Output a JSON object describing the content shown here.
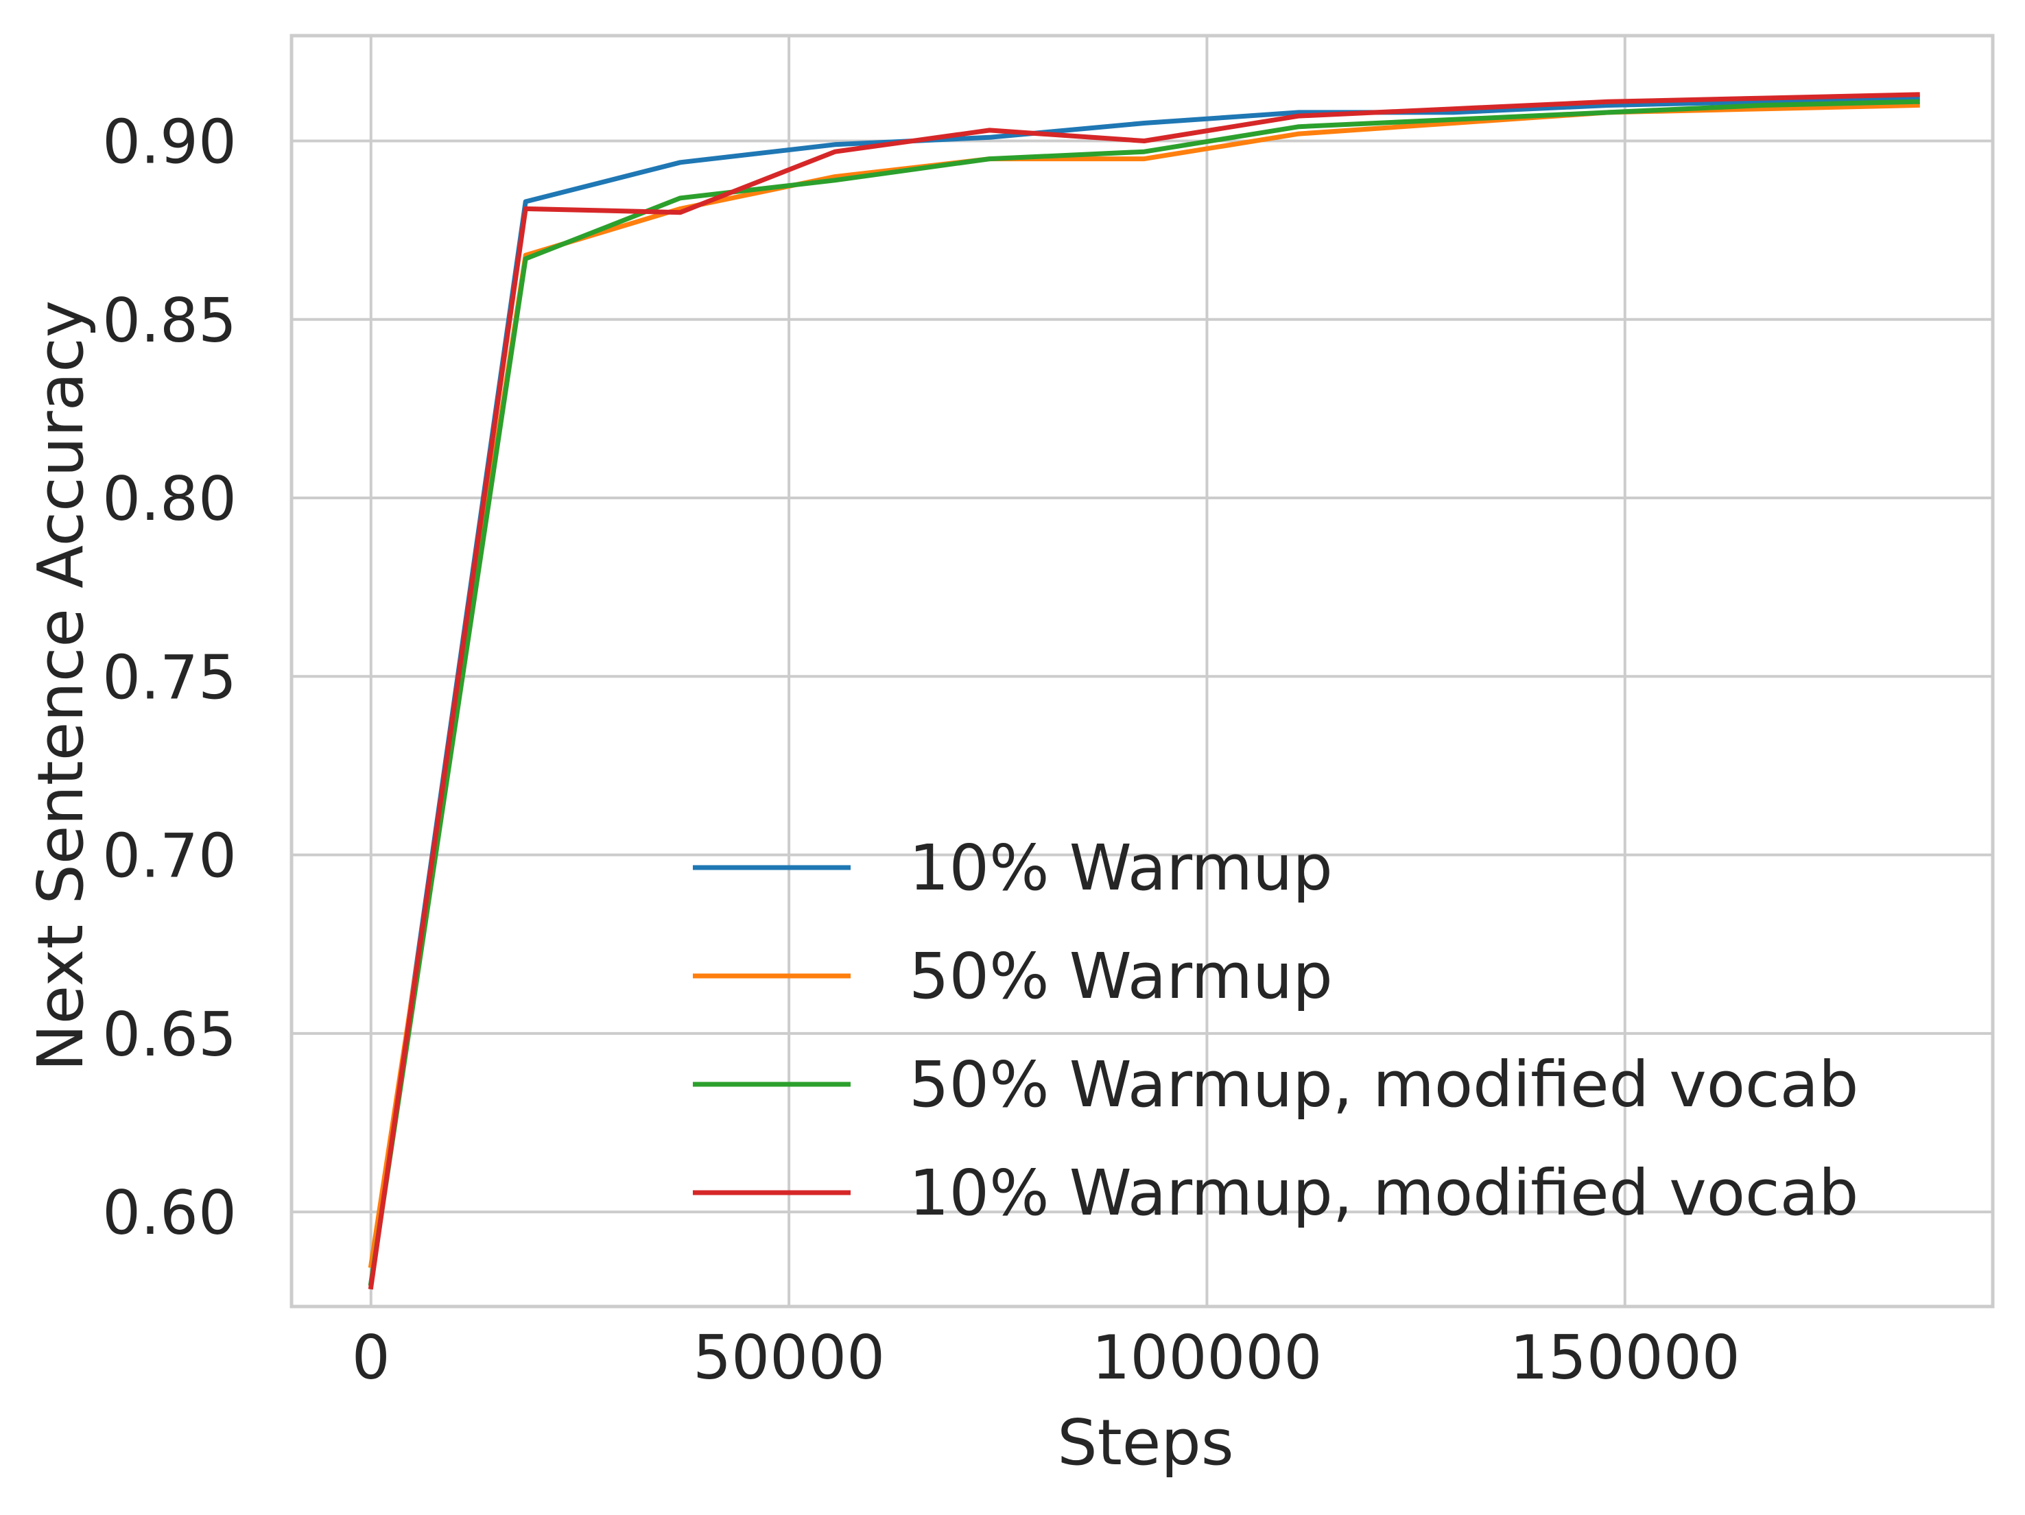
{
  "chart_data": {
    "type": "line",
    "title": "",
    "xlabel": "Steps",
    "ylabel": "Next Sentence Accuracy",
    "xlim": [
      -9500,
      194000
    ],
    "ylim": [
      0.5735,
      0.9295
    ],
    "xticks": [
      0,
      50000,
      100000,
      150000
    ],
    "yticks": [
      0.6,
      0.65,
      0.7,
      0.75,
      0.8,
      0.85,
      0.9
    ],
    "xtick_labels": [
      "0",
      "50000",
      "100000",
      "150000"
    ],
    "ytick_labels": [
      "0.60",
      "0.65",
      "0.70",
      "0.75",
      "0.80",
      "0.85",
      "0.90"
    ],
    "grid": true,
    "legend_position": "lower-right",
    "series": [
      {
        "name": "10% Warmup",
        "color": "#1f77b4",
        "x": [
          0,
          18500,
          37000,
          55500,
          74000,
          92500,
          111000,
          129500,
          148000,
          166500,
          185000
        ],
        "y": [
          0.58,
          0.883,
          0.894,
          0.899,
          0.901,
          0.905,
          0.908,
          0.908,
          0.91,
          0.911,
          0.912
        ]
      },
      {
        "name": "50% Warmup",
        "color": "#ff7f0e",
        "x": [
          0,
          18500,
          37000,
          55500,
          74000,
          92500,
          111000,
          129500,
          148000,
          166500,
          185000
        ],
        "y": [
          0.585,
          0.868,
          0.881,
          0.89,
          0.895,
          0.895,
          0.902,
          0.905,
          0.908,
          0.909,
          0.91
        ]
      },
      {
        "name": "50% Warmup, modified vocab",
        "color": "#2ca02c",
        "x": [
          0,
          18500,
          37000,
          55500,
          74000,
          92500,
          111000,
          129500,
          148000,
          166500,
          185000
        ],
        "y": [
          0.58,
          0.867,
          0.884,
          0.889,
          0.895,
          0.897,
          0.904,
          0.906,
          0.908,
          0.91,
          0.911
        ]
      },
      {
        "name": "10% Warmup, modified vocab",
        "color": "#d62728",
        "x": [
          0,
          18500,
          37000,
          55500,
          74000,
          92500,
          111000,
          129500,
          148000,
          166500,
          185000
        ],
        "y": [
          0.579,
          0.881,
          0.88,
          0.897,
          0.903,
          0.9,
          0.907,
          0.909,
          0.911,
          0.912,
          0.913
        ]
      }
    ]
  }
}
